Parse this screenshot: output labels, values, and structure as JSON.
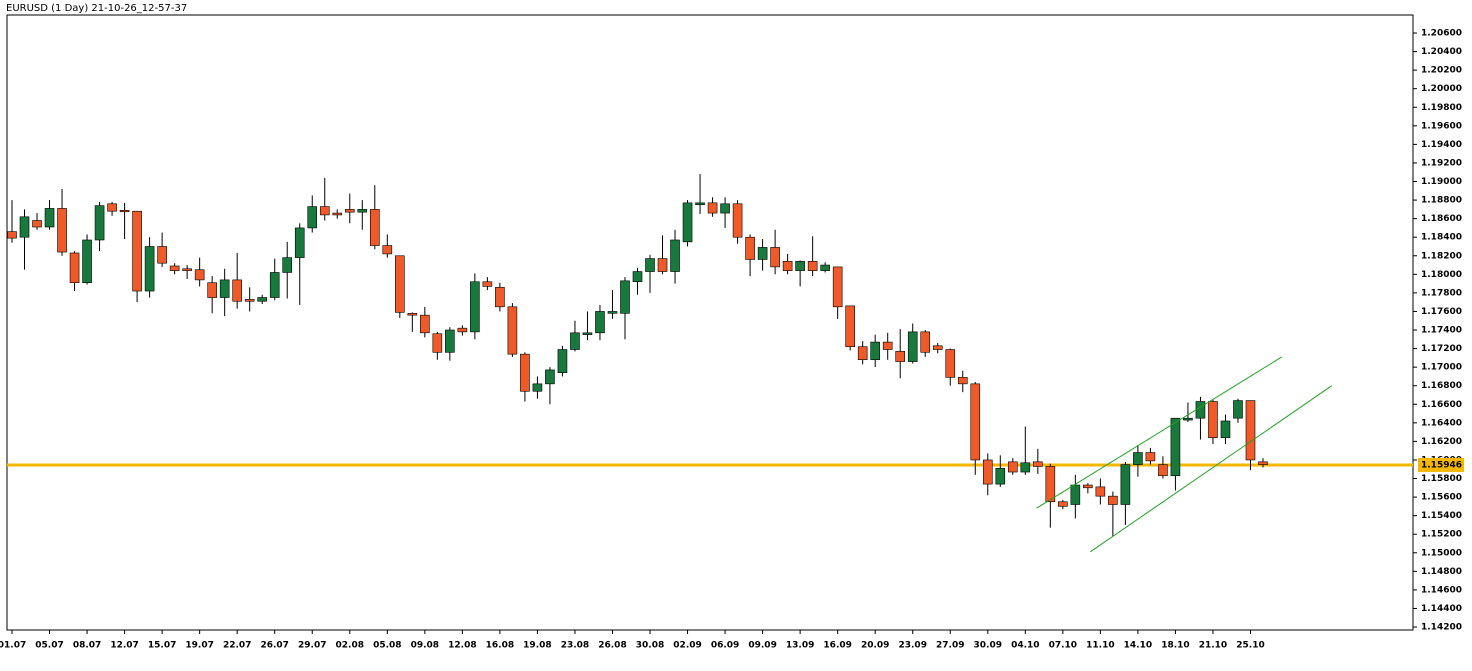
{
  "chart_data": {
    "type": "candlestick",
    "title": "EURUSD (1 Day) 21-10-26_12-57-37",
    "up_color": "#177a3c",
    "down_color": "#f05a28",
    "categories": [
      "01.07",
      null,
      null,
      "05.07",
      null,
      null,
      "08.07",
      null,
      null,
      "12.07",
      null,
      null,
      "15.07",
      null,
      null,
      "19.07",
      null,
      null,
      "22.07",
      null,
      null,
      "26.07",
      null,
      null,
      "29.07",
      null,
      null,
      "02.08",
      null,
      null,
      "05.08",
      null,
      null,
      "09.08",
      null,
      null,
      "12.08",
      null,
      null,
      "16.08",
      null,
      null,
      "19.08",
      null,
      null,
      "23.08",
      null,
      null,
      "26.08",
      null,
      null,
      "30.08",
      null,
      null,
      "02.09",
      null,
      null,
      "06.09",
      null,
      null,
      "09.09",
      null,
      null,
      "13.09",
      null,
      null,
      "16.09",
      null,
      null,
      "20.09",
      null,
      null,
      "23.09",
      null,
      null,
      "27.09",
      null,
      null,
      "30.09",
      null,
      null,
      "04.10",
      null,
      null,
      "07.10",
      null,
      null,
      "11.10",
      null,
      null,
      "14.10",
      null,
      null,
      "18.10",
      null,
      null,
      "21.10",
      null,
      null,
      "25.10",
      null
    ],
    "open": [
      1.1846,
      1.184,
      1.1858,
      1.1851,
      1.1871,
      1.1823,
      1.1791,
      1.1837,
      1.1876,
      1.1869,
      1.1868,
      1.1782,
      1.183,
      1.1809,
      1.1806,
      1.1805,
      1.1791,
      1.1775,
      1.1794,
      1.1773,
      1.1771,
      1.1775,
      1.1802,
      1.1818,
      1.185,
      1.1873,
      1.1866,
      1.187,
      1.1867,
      1.187,
      1.1831,
      1.182,
      1.1758,
      1.1756,
      1.1736,
      1.1716,
      1.1742,
      1.1738,
      1.1792,
      1.1786,
      1.1765,
      1.1714,
      1.1674,
      1.1682,
      1.1694,
      1.1719,
      1.1735,
      1.1737,
      1.1758,
      1.1758,
      1.1792,
      1.1803,
      1.1817,
      1.1803,
      1.1835,
      1.1875,
      1.1877,
      1.1866,
      1.1876,
      1.184,
      1.1816,
      1.1829,
      1.1814,
      1.1804,
      1.1814,
      1.1804,
      1.1808,
      1.1766,
      1.1722,
      1.1708,
      1.1727,
      1.1717,
      1.1706,
      1.1738,
      1.1723,
      1.1719,
      1.1689,
      1.1682,
      1.16,
      1.1574,
      1.1598,
      1.1587,
      1.1598,
      1.1593,
      1.1555,
      1.1552,
      1.1573,
      1.1571,
      1.1561,
      1.1552,
      1.1595,
      1.1608,
      1.1595,
      1.1583,
      1.1643,
      1.1645,
      1.1663,
      1.1624,
      1.1645,
      1.1664,
      1.1598
    ],
    "high": [
      1.188,
      1.187,
      1.1866,
      1.188,
      1.1892,
      1.1825,
      1.1843,
      1.1878,
      1.1878,
      1.1877,
      1.1868,
      1.184,
      1.1845,
      1.1812,
      1.181,
      1.1818,
      1.1798,
      1.1806,
      1.1823,
      1.1786,
      1.1778,
      1.1817,
      1.1835,
      1.1855,
      1.1885,
      1.1904,
      1.187,
      1.1887,
      1.188,
      1.1896,
      1.1843,
      1.182,
      1.1759,
      1.1765,
      1.1738,
      1.1743,
      1.1745,
      1.1801,
      1.1797,
      1.1791,
      1.1769,
      1.1716,
      1.169,
      1.17,
      1.1723,
      1.175,
      1.176,
      1.1767,
      1.1783,
      1.1797,
      1.1807,
      1.1821,
      1.1842,
      1.1848,
      1.188,
      1.1908,
      1.1883,
      1.1883,
      1.188,
      1.1843,
      1.1838,
      1.1848,
      1.1822,
      1.1815,
      1.1841,
      1.1813,
      1.1808,
      1.1766,
      1.1728,
      1.1735,
      1.1737,
      1.1741,
      1.1747,
      1.174,
      1.1726,
      1.172,
      1.1696,
      1.1684,
      1.1607,
      1.1605,
      1.1602,
      1.1636,
      1.1612,
      1.1596,
      1.1557,
      1.1584,
      1.1575,
      1.158,
      1.1566,
      1.1598,
      1.1616,
      1.1613,
      1.1604,
      1.1645,
      1.1662,
      1.1668,
      1.1665,
      1.1649,
      1.1666,
      1.1664,
      1.1602
    ],
    "low": [
      1.1834,
      1.1805,
      1.1848,
      1.1848,
      1.182,
      1.1782,
      1.1789,
      1.1825,
      1.1863,
      1.1838,
      1.177,
      1.1775,
      1.1808,
      1.18,
      1.1795,
      1.1787,
      1.1758,
      1.1755,
      1.1763,
      1.176,
      1.1768,
      1.1772,
      1.1774,
      1.1767,
      1.1845,
      1.1858,
      1.186,
      1.1855,
      1.1848,
      1.1827,
      1.1818,
      1.1753,
      1.1738,
      1.1732,
      1.1708,
      1.1707,
      1.1734,
      1.173,
      1.1783,
      1.176,
      1.1711,
      1.1663,
      1.1666,
      1.166,
      1.169,
      1.1717,
      1.1729,
      1.1729,
      1.1752,
      1.173,
      1.1778,
      1.178,
      1.18,
      1.179,
      1.183,
      1.1865,
      1.1862,
      1.185,
      1.1833,
      1.1798,
      1.1804,
      1.18,
      1.18,
      1.1787,
      1.1798,
      1.1802,
      1.1752,
      1.1718,
      1.1703,
      1.17,
      1.1708,
      1.1688,
      1.1704,
      1.1711,
      1.1715,
      1.168,
      1.1673,
      1.1584,
      1.1562,
      1.1571,
      1.1584,
      1.1584,
      1.1585,
      1.1527,
      1.1547,
      1.1537,
      1.1564,
      1.1552,
      1.1518,
      1.153,
      1.1582,
      1.1595,
      1.158,
      1.1567,
      1.1641,
      1.1622,
      1.1617,
      1.1617,
      1.164,
      1.1589,
      1.1592
    ],
    "close": [
      1.1839,
      1.1862,
      1.1851,
      1.1871,
      1.1824,
      1.1791,
      1.1837,
      1.1874,
      1.1868,
      1.1868,
      1.1782,
      1.183,
      1.1812,
      1.1804,
      1.1804,
      1.1794,
      1.1775,
      1.1794,
      1.1771,
      1.1771,
      1.1775,
      1.1802,
      1.1818,
      1.185,
      1.1873,
      1.1864,
      1.1864,
      1.1867,
      1.187,
      1.1831,
      1.1822,
      1.1759,
      1.1756,
      1.1737,
      1.1716,
      1.174,
      1.1738,
      1.1792,
      1.1787,
      1.1765,
      1.1714,
      1.1674,
      1.1682,
      1.1697,
      1.1719,
      1.1737,
      1.1737,
      1.176,
      1.176,
      1.1793,
      1.1803,
      1.1817,
      1.1803,
      1.1837,
      1.1877,
      1.1877,
      1.1866,
      1.1876,
      1.184,
      1.1816,
      1.1829,
      1.1808,
      1.1804,
      1.1814,
      1.1804,
      1.181,
      1.1765,
      1.1722,
      1.1708,
      1.1727,
      1.1719,
      1.1706,
      1.1738,
      1.1716,
      1.1719,
      1.1689,
      1.1682,
      1.16,
      1.1574,
      1.1591,
      1.1587,
      1.1597,
      1.1593,
      1.1555,
      1.155,
      1.1573,
      1.157,
      1.1561,
      1.1552,
      1.1595,
      1.1608,
      1.1599,
      1.1583,
      1.1645,
      1.1645,
      1.1663,
      1.1624,
      1.1642,
      1.1664,
      1.16,
      1.1595
    ],
    "price_line": {
      "value": 1.15946,
      "color": "#f5b800"
    },
    "trendlines": [
      {
        "color": "#1fa31f",
        "x": [
          81.9,
          101.5
        ],
        "y": [
          1.1548,
          1.1711
        ]
      },
      {
        "color": "#1fa31f",
        "x": [
          86.2,
          105.5
        ],
        "y": [
          1.1501,
          1.168
        ]
      }
    ],
    "ylim": [
      1.14168,
      1.20794
    ],
    "yticks": [
      {
        "value": 1.142,
        "label": "1.14200"
      },
      {
        "value": 1.144,
        "label": "1.14400"
      },
      {
        "value": 1.146,
        "label": "1.14600"
      },
      {
        "value": 1.148,
        "label": "1.14800"
      },
      {
        "value": 1.15,
        "label": "1.15000"
      },
      {
        "value": 1.152,
        "label": "1.15200"
      },
      {
        "value": 1.154,
        "label": "1.15400"
      },
      {
        "value": 1.156,
        "label": "1.15600"
      },
      {
        "value": 1.158,
        "label": "1.15800"
      },
      {
        "value": 1.16,
        "label": "1.16000"
      },
      {
        "value": 1.162,
        "label": "1.16200"
      },
      {
        "value": 1.164,
        "label": "1.16400"
      },
      {
        "value": 1.166,
        "label": "1.16600"
      },
      {
        "value": 1.168,
        "label": "1.16800"
      },
      {
        "value": 1.17,
        "label": "1.17000"
      },
      {
        "value": 1.172,
        "label": "1.17200"
      },
      {
        "value": 1.174,
        "label": "1.17400"
      },
      {
        "value": 1.176,
        "label": "1.17600"
      },
      {
        "value": 1.178,
        "label": "1.17800"
      },
      {
        "value": 1.18,
        "label": "1.18000"
      },
      {
        "value": 1.182,
        "label": "1.18200"
      },
      {
        "value": 1.184,
        "label": "1.18400"
      },
      {
        "value": 1.186,
        "label": "1.18600"
      },
      {
        "value": 1.188,
        "label": "1.18800"
      },
      {
        "value": 1.19,
        "label": "1.19000"
      },
      {
        "value": 1.192,
        "label": "1.19200"
      },
      {
        "value": 1.194,
        "label": "1.19400"
      },
      {
        "value": 1.196,
        "label": "1.19600"
      },
      {
        "value": 1.198,
        "label": "1.19800"
      },
      {
        "value": 1.2,
        "label": "1.20000"
      },
      {
        "value": 1.202,
        "label": "1.20200"
      },
      {
        "value": 1.204,
        "label": "1.20400"
      },
      {
        "value": 1.206,
        "label": "1.20600"
      }
    ]
  }
}
